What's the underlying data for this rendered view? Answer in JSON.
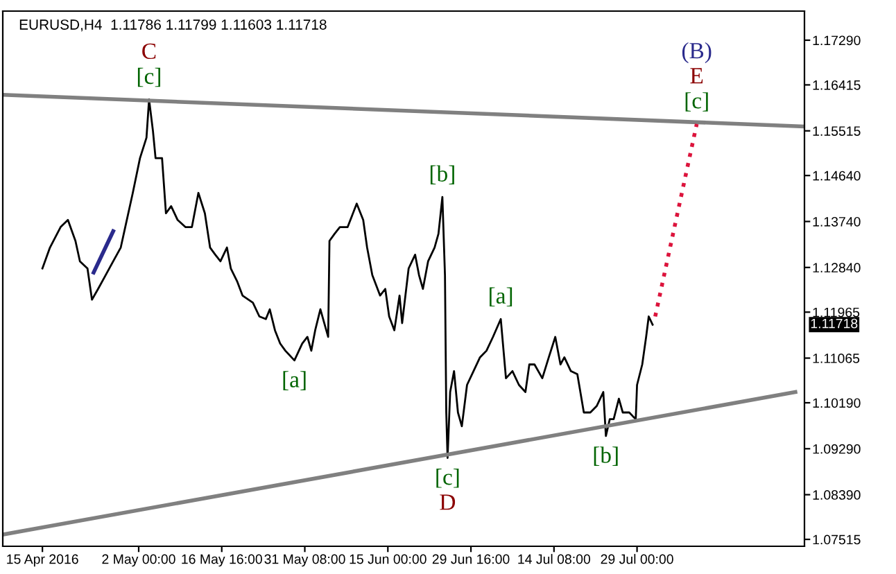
{
  "chart_data": {
    "type": "line",
    "title": "EURUSD,H4  1.11786 1.11799 1.11603 1.11718",
    "xlim": [
      "2016-04-08T00:00",
      "2016-08-27T13:30"
    ],
    "ylim": [
      1.0738,
      1.1786
    ],
    "xticks": [
      {
        "value": "2016-04-15",
        "label": "15 Apr 2016"
      },
      {
        "value": "2016-05-02T00:00",
        "label": "2 May 00:00"
      },
      {
        "value": "2016-05-16T16:00",
        "label": "16 May 16:00"
      },
      {
        "value": "2016-05-31T08:00",
        "label": "31 May 08:00"
      },
      {
        "value": "2016-06-15T00:00",
        "label": "15 Jun 00:00"
      },
      {
        "value": "2016-06-29T16:00",
        "label": "29 Jun 16:00"
      },
      {
        "value": "2016-07-14T08:00",
        "label": "14 Jul 08:00"
      },
      {
        "value": "2016-07-29T00:00",
        "label": "29 Jul 00:00"
      }
    ],
    "yticks": [
      {
        "value": 1.1729,
        "label": "1.17290"
      },
      {
        "value": 1.16415,
        "label": "1.16415"
      },
      {
        "value": 1.15515,
        "label": "1.15515"
      },
      {
        "value": 1.1464,
        "label": "1.14640"
      },
      {
        "value": 1.1374,
        "label": "1.13740"
      },
      {
        "value": 1.1284,
        "label": "1.12840"
      },
      {
        "value": 1.11965,
        "label": "1.11965"
      },
      {
        "value": 1.11065,
        "label": "1.11065"
      },
      {
        "value": 1.1019,
        "label": "1.10190"
      },
      {
        "value": 1.0929,
        "label": "1.09290"
      },
      {
        "value": 1.0839,
        "label": "1.08390"
      },
      {
        "value": 1.07515,
        "label": "1.07515"
      }
    ],
    "grid": false,
    "legend": false,
    "marker": "none",
    "series": [
      {
        "color": "#000000",
        "line_style": "solid",
        "x": [
          "2016-04-15T00:00",
          "2016-04-16T08:00",
          "2016-04-18T05:00",
          "2016-04-19T12:00",
          "2016-04-20T20:00",
          "2016-04-21T15:00",
          "2016-04-22T23:00",
          "2016-04-23T18:00",
          "2016-04-24T20:00",
          "2016-04-26T04:00",
          "2016-04-27T12:00",
          "2016-04-28T20:00",
          "2016-04-29T15:00",
          "2016-04-30T23:00",
          "2016-05-02T05:30",
          "2016-05-03T09:00",
          "2016-05-03T20:00",
          "2016-05-04T12:30",
          "2016-05-04T23:30",
          "2016-05-06T03:00",
          "2016-05-06T19:30",
          "2016-05-07T17:30",
          "2016-05-08T21:00",
          "2016-05-10T06:00",
          "2016-05-11T09:30",
          "2016-05-12T13:00",
          "2016-05-13T16:30",
          "2016-05-14T14:30",
          "2016-05-15T12:30",
          "2016-05-16T10:30",
          "2016-05-17T14:00",
          "2016-05-18T06:30",
          "2016-05-19T10:00",
          "2016-05-20T08:00",
          "2016-05-22T04:00",
          "2016-05-23T07:30",
          "2016-05-24T11:00",
          "2016-05-25T03:30",
          "2016-05-26T01:30",
          "2016-05-26T23:30",
          "2016-05-27T21:30",
          "2016-05-29T12:00",
          "2016-05-30T21:00",
          "2016-05-31T19:00",
          "2016-06-01T11:30",
          "2016-06-02T04:00",
          "2016-06-03T02:00",
          "2016-06-03T18:30",
          "2016-06-04T11:00",
          "2016-06-04T16:30",
          "2016-06-05T14:30",
          "2016-06-06T12:30",
          "2016-06-07T21:30",
          "2016-06-09T12:00",
          "2016-06-10T15:30",
          "2016-06-11T08:00",
          "2016-06-12T06:00",
          "2016-06-13T15:00",
          "2016-06-14T13:00",
          "2016-06-15T05:30",
          "2016-06-16T03:30",
          "2016-06-17T01:30",
          "2016-06-17T12:30",
          "2016-06-18T16:00",
          "2016-06-19T19:30",
          "2016-06-20T12:00",
          "2016-06-21T04:30",
          "2016-06-22T02:30",
          "2016-06-23T06:00",
          "2016-06-23T22:30",
          "2016-06-24T15:00",
          "2016-06-25T02:00",
          "2016-06-25T07:30",
          "2016-06-25T13:00",
          "2016-06-26T00:00",
          "2016-06-26T16:30",
          "2016-06-27T09:00",
          "2016-06-28T01:30",
          "2016-06-28T23:30",
          "2016-06-30T03:00",
          "2016-07-01T06:30",
          "2016-07-02T10:00",
          "2016-07-03T13:30",
          "2016-07-04T22:30",
          "2016-07-05T20:30",
          "2016-07-07T00:00",
          "2016-07-08T03:30",
          "2016-07-09T07:00",
          "2016-07-09T23:30",
          "2016-07-10T21:30",
          "2016-07-12T06:30",
          "2016-07-13T10:00",
          "2016-07-14T13:30",
          "2016-07-15T11:30",
          "2016-07-16T04:00",
          "2016-07-17T07:30",
          "2016-07-18T11:00",
          "2016-07-19T14:30",
          "2016-07-20T18:00",
          "2016-07-21T21:30",
          "2016-07-23T01:00",
          "2016-07-23T12:00",
          "2016-07-24T04:30",
          "2016-07-24T21:00",
          "2016-07-25T19:00",
          "2016-07-26T11:30",
          "2016-07-27T15:00",
          "2016-07-28T07:30",
          "2016-07-28T18:30",
          "2016-07-29T00:00",
          "2016-07-29T22:00",
          "2016-07-30T14:30",
          "2016-07-31T01:30",
          "2016-07-31T18:00"
        ],
        "values": [
          1.1282,
          1.1323,
          1.1363,
          1.1377,
          1.1336,
          1.1296,
          1.1282,
          1.1221,
          1.1242,
          1.1269,
          1.1296,
          1.1323,
          1.1363,
          1.143,
          1.1498,
          1.1538,
          1.1613,
          1.1551,
          1.1498,
          1.1498,
          1.139,
          1.1404,
          1.1377,
          1.1363,
          1.1363,
          1.143,
          1.139,
          1.1323,
          1.1309,
          1.1296,
          1.1323,
          1.1282,
          1.1256,
          1.1229,
          1.1215,
          1.1188,
          1.1183,
          1.1202,
          1.1161,
          1.1135,
          1.1121,
          1.1102,
          1.1135,
          1.1148,
          1.1121,
          1.1161,
          1.1202,
          1.1175,
          1.1148,
          1.1336,
          1.135,
          1.1363,
          1.1363,
          1.1409,
          1.1377,
          1.1323,
          1.1269,
          1.1229,
          1.1242,
          1.1188,
          1.1161,
          1.1229,
          1.1175,
          1.1282,
          1.1309,
          1.1269,
          1.1242,
          1.1296,
          1.1323,
          1.135,
          1.1422,
          1.1269,
          1.1,
          1.0911,
          1.104,
          1.1081,
          1.1,
          1.0973,
          1.1054,
          1.1081,
          1.1108,
          1.1121,
          1.1148,
          1.1183,
          1.1067,
          1.1081,
          1.1054,
          1.104,
          1.1094,
          1.1094,
          1.1067,
          1.1108,
          1.1148,
          1.1094,
          1.1108,
          1.1081,
          1.1075,
          1.1,
          1.1,
          1.1013,
          1.104,
          1.0954,
          1.0987,
          1.0987,
          1.1027,
          1.1,
          1.1,
          1.0992,
          1.0987,
          1.1054,
          1.1094,
          1.1148,
          1.1188,
          1.1172
        ]
      },
      {
        "color": "#808080",
        "line_style": "solid",
        "x": [
          "2016-04-08T00:00",
          "2016-08-27T13:30"
        ],
        "values": [
          1.1622,
          1.156
        ]
      },
      {
        "color": "#808080",
        "line_style": "solid",
        "x": [
          "2016-04-08T00:00",
          "2016-08-25T23:00"
        ],
        "values": [
          1.0761,
          1.104
        ]
      },
      {
        "color": "#dc143c",
        "line_style": "dotted",
        "x": [
          "2016-08-01T05:00",
          "2016-08-08T13:00"
        ],
        "values": [
          1.1188,
          1.1565
        ]
      },
      {
        "color": "#2a2a8c",
        "line_style": "solid",
        "x": [
          "2016-04-24T01:00",
          "2016-04-27T12:00"
        ],
        "values": [
          1.1274,
          1.1355
        ]
      }
    ],
    "annotations": [
      {
        "text": "C",
        "x": "2016-05-03T20:00",
        "y": 1.1613
      },
      {
        "text": "[c]",
        "x": "2016-05-03T20:00",
        "y": 1.1613
      },
      {
        "text": "[b]",
        "x": "2016-06-24T15:00",
        "y": 1.1422
      },
      {
        "text": "[a]",
        "x": "2016-05-29T12:00",
        "y": 1.1102
      },
      {
        "text": "[c]",
        "x": "2016-06-25T13:00",
        "y": 1.0911
      },
      {
        "text": "D",
        "x": "2016-06-25T13:00",
        "y": 1.0911
      },
      {
        "text": "[a]",
        "x": "2016-07-04T22:30",
        "y": 1.1183
      },
      {
        "text": "[b]",
        "x": "2016-07-23T12:00",
        "y": 1.0954
      },
      {
        "text": "(B)",
        "x": "2016-08-08T13:00",
        "y": 1.1565
      },
      {
        "text": "E",
        "x": "2016-08-08T13:00",
        "y": 1.1565
      },
      {
        "text": "[c]",
        "x": "2016-08-08T13:00",
        "y": 1.1565
      },
      "1.11718"
    ]
  }
}
